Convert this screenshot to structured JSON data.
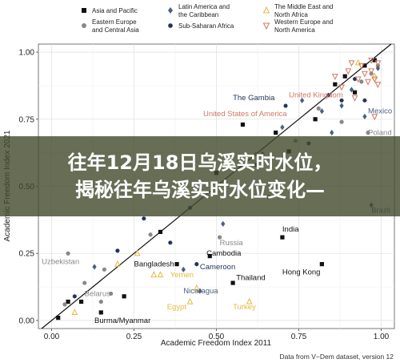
{
  "colors": {
    "asia_pacific": "#111111",
    "eastern_europe": "#888888",
    "latin_america": "#4a6080",
    "sub_saharan": "#1e3158",
    "mena": "#e8b840",
    "western_europe": "#d07860",
    "overlay_bg": "#42482c"
  },
  "overlay": {
    "line1": "往年12月18日乌溪实时水位，",
    "line2": "揭秘往年乌溪实时水位变化—"
  },
  "source": "Data from V−Dem dataset, version 12",
  "chart_data": {
    "type": "scatter",
    "xlabel": "Academic Freedom Index 2011",
    "ylabel": "Academic Freedom Index 2021",
    "xlim": [
      -0.04,
      1.04
    ],
    "ylim": [
      -0.03,
      1.03
    ],
    "xticks": [
      "0.00",
      "0.25",
      "0.50",
      "0.75",
      "1.00"
    ],
    "yticks": [
      "0.00",
      "0.25",
      "0.50",
      "0.75",
      "1.00"
    ],
    "grid": true,
    "legend_position": "top",
    "reference_line": "y = x",
    "legend": [
      {
        "key": "asia_pacific",
        "label": [
          "Asia and Pacific"
        ],
        "marker": "square"
      },
      {
        "key": "latin_america",
        "label": [
          "Latin America and",
          "the Caribbean"
        ],
        "marker": "diamond"
      },
      {
        "key": "mena",
        "label": [
          "The Middle East and",
          "North Africa"
        ],
        "marker": "triangle"
      },
      {
        "key": "eastern_europe",
        "label": [
          "Eastern Europe",
          "and Central Asia"
        ],
        "marker": "circle"
      },
      {
        "key": "sub_saharan",
        "label": [
          "Sub-Saharan Africa"
        ],
        "marker": "star"
      },
      {
        "key": "western_europe",
        "label": [
          "Western Europe and",
          "North America"
        ],
        "marker": "tri-down"
      }
    ],
    "labeled_points": [
      {
        "label": "The Gambia",
        "region": "sub_saharan",
        "x": 0.88,
        "y": 0.82,
        "lx": 0.55,
        "ly": 0.83
      },
      {
        "label": "United Kingdom",
        "region": "western_europe",
        "x": 0.96,
        "y": 0.89,
        "lx": 0.72,
        "ly": 0.84
      },
      {
        "label": "United States of America",
        "region": "western_europe",
        "x": 0.92,
        "y": 0.83,
        "lx": 0.46,
        "ly": 0.77
      },
      {
        "label": "Mexico",
        "region": "latin_america",
        "x": 0.95,
        "y": 0.76,
        "lx": 0.96,
        "ly": 0.78
      },
      {
        "label": "Poland",
        "region": "eastern_europe",
        "x": 0.96,
        "y": 0.7,
        "lx": 0.96,
        "ly": 0.7
      },
      {
        "label": "Brazil",
        "region": "latin_america",
        "x": 0.97,
        "y": 0.43,
        "lx": 0.97,
        "ly": 0.41
      },
      {
        "label": "India",
        "region": "asia_pacific",
        "x": 0.7,
        "y": 0.31,
        "lx": 0.7,
        "ly": 0.34
      },
      {
        "label": "Russia",
        "region": "eastern_europe",
        "x": 0.51,
        "y": 0.31,
        "lx": 0.51,
        "ly": 0.29
      },
      {
        "label": "Cambodia",
        "region": "asia_pacific",
        "x": 0.48,
        "y": 0.24,
        "lx": 0.47,
        "ly": 0.25
      },
      {
        "label": "Uzbekistan",
        "region": "eastern_europe",
        "x": 0.05,
        "y": 0.25,
        "lx": -0.03,
        "ly": 0.22
      },
      {
        "label": "Bangladesh",
        "region": "asia_pacific",
        "x": 0.38,
        "y": 0.21,
        "lx": 0.25,
        "ly": 0.21
      },
      {
        "label": "Cameroon",
        "region": "sub_saharan",
        "x": 0.44,
        "y": 0.21,
        "lx": 0.45,
        "ly": 0.2
      },
      {
        "label": "Hong Kong",
        "region": "asia_pacific",
        "x": 0.82,
        "y": 0.21,
        "lx": 0.7,
        "ly": 0.18
      },
      {
        "label": "Yemen",
        "region": "mena",
        "x": 0.33,
        "y": 0.17,
        "lx": 0.36,
        "ly": 0.17
      },
      {
        "label": "Thailand",
        "region": "asia_pacific",
        "x": 0.55,
        "y": 0.14,
        "lx": 0.56,
        "ly": 0.16
      },
      {
        "label": "Belarus",
        "region": "eastern_europe",
        "x": 0.15,
        "y": 0.07,
        "lx": 0.1,
        "ly": 0.1
      },
      {
        "label": "Nicaragua",
        "region": "latin_america",
        "x": 0.45,
        "y": 0.11,
        "lx": 0.4,
        "ly": 0.11
      },
      {
        "label": "Egypt",
        "region": "mena",
        "x": 0.42,
        "y": 0.07,
        "lx": 0.35,
        "ly": 0.05
      },
      {
        "label": "Turkey",
        "region": "mena",
        "x": 0.6,
        "y": 0.07,
        "lx": 0.55,
        "ly": 0.05
      },
      {
        "label": "Burma/Myanmar",
        "region": "asia_pacific",
        "x": 0.15,
        "y": 0.03,
        "lx": 0.13,
        "ly": 0.0
      }
    ],
    "points": [
      {
        "region": "asia_pacific",
        "x": 0.02,
        "y": 0.01
      },
      {
        "region": "asia_pacific",
        "x": 0.05,
        "y": 0.07
      },
      {
        "region": "asia_pacific",
        "x": 0.09,
        "y": 0.07
      },
      {
        "region": "asia_pacific",
        "x": 0.15,
        "y": 0.03
      },
      {
        "region": "asia_pacific",
        "x": 0.22,
        "y": 0.09
      },
      {
        "region": "asia_pacific",
        "x": 0.33,
        "y": 0.33
      },
      {
        "region": "asia_pacific",
        "x": 0.38,
        "y": 0.21
      },
      {
        "region": "asia_pacific",
        "x": 0.48,
        "y": 0.24
      },
      {
        "region": "asia_pacific",
        "x": 0.55,
        "y": 0.14
      },
      {
        "region": "asia_pacific",
        "x": 0.7,
        "y": 0.31
      },
      {
        "region": "asia_pacific",
        "x": 0.82,
        "y": 0.21
      },
      {
        "region": "asia_pacific",
        "x": 0.58,
        "y": 0.73
      },
      {
        "region": "asia_pacific",
        "x": 0.68,
        "y": 0.7
      },
      {
        "region": "asia_pacific",
        "x": 0.72,
        "y": 0.63
      },
      {
        "region": "asia_pacific",
        "x": 0.8,
        "y": 0.75
      },
      {
        "region": "asia_pacific",
        "x": 0.86,
        "y": 0.88
      },
      {
        "region": "asia_pacific",
        "x": 0.89,
        "y": 0.91
      },
      {
        "region": "asia_pacific",
        "x": 0.92,
        "y": 0.85
      },
      {
        "region": "asia_pacific",
        "x": 0.95,
        "y": 0.95
      },
      {
        "region": "asia_pacific",
        "x": 0.98,
        "y": 0.97
      },
      {
        "region": "asia_pacific",
        "x": 0.5,
        "y": 0.55
      },
      {
        "region": "eastern_europe",
        "x": 0.05,
        "y": 0.25
      },
      {
        "region": "eastern_europe",
        "x": 0.04,
        "y": 0.06
      },
      {
        "region": "eastern_europe",
        "x": 0.15,
        "y": 0.07
      },
      {
        "region": "eastern_europe",
        "x": 0.18,
        "y": 0.1
      },
      {
        "region": "eastern_europe",
        "x": 0.16,
        "y": 0.19
      },
      {
        "region": "eastern_europe",
        "x": 0.1,
        "y": 0.14
      },
      {
        "region": "eastern_europe",
        "x": 0.3,
        "y": 0.32
      },
      {
        "region": "eastern_europe",
        "x": 0.51,
        "y": 0.31
      },
      {
        "region": "eastern_europe",
        "x": 0.62,
        "y": 0.62
      },
      {
        "region": "eastern_europe",
        "x": 0.74,
        "y": 0.67
      },
      {
        "region": "eastern_europe",
        "x": 0.81,
        "y": 0.79
      },
      {
        "region": "eastern_europe",
        "x": 0.88,
        "y": 0.74
      },
      {
        "region": "eastern_europe",
        "x": 0.94,
        "y": 0.89
      },
      {
        "region": "eastern_europe",
        "x": 0.96,
        "y": 0.7
      },
      {
        "region": "eastern_europe",
        "x": 0.97,
        "y": 0.92
      },
      {
        "region": "eastern_europe",
        "x": 0.99,
        "y": 0.95
      },
      {
        "region": "latin_america",
        "x": 0.13,
        "y": 0.2
      },
      {
        "region": "latin_america",
        "x": 0.45,
        "y": 0.11
      },
      {
        "region": "latin_america",
        "x": 0.4,
        "y": 0.19
      },
      {
        "region": "latin_america",
        "x": 0.52,
        "y": 0.36
      },
      {
        "region": "latin_america",
        "x": 0.64,
        "y": 0.62
      },
      {
        "region": "latin_america",
        "x": 0.7,
        "y": 0.72
      },
      {
        "region": "latin_america",
        "x": 0.76,
        "y": 0.82
      },
      {
        "region": "latin_america",
        "x": 0.82,
        "y": 0.78
      },
      {
        "region": "latin_america",
        "x": 0.85,
        "y": 0.7
      },
      {
        "region": "latin_america",
        "x": 0.88,
        "y": 0.8
      },
      {
        "region": "latin_america",
        "x": 0.91,
        "y": 0.86
      },
      {
        "region": "latin_america",
        "x": 0.95,
        "y": 0.76
      },
      {
        "region": "latin_america",
        "x": 0.97,
        "y": 0.43
      },
      {
        "region": "latin_america",
        "x": 0.99,
        "y": 0.94
      },
      {
        "region": "sub_saharan",
        "x": 0.07,
        "y": 0.09
      },
      {
        "region": "sub_saharan",
        "x": 0.2,
        "y": 0.26
      },
      {
        "region": "sub_saharan",
        "x": 0.28,
        "y": 0.38
      },
      {
        "region": "sub_saharan",
        "x": 0.36,
        "y": 0.29
      },
      {
        "region": "sub_saharan",
        "x": 0.44,
        "y": 0.21
      },
      {
        "region": "sub_saharan",
        "x": 0.42,
        "y": 0.42
      },
      {
        "region": "sub_saharan",
        "x": 0.56,
        "y": 0.5
      },
      {
        "region": "sub_saharan",
        "x": 0.62,
        "y": 0.58
      },
      {
        "region": "sub_saharan",
        "x": 0.66,
        "y": 0.46
      },
      {
        "region": "sub_saharan",
        "x": 0.71,
        "y": 0.8
      },
      {
        "region": "sub_saharan",
        "x": 0.78,
        "y": 0.66
      },
      {
        "region": "sub_saharan",
        "x": 0.84,
        "y": 0.84
      },
      {
        "region": "sub_saharan",
        "x": 0.88,
        "y": 0.82
      },
      {
        "region": "sub_saharan",
        "x": 0.92,
        "y": 0.9
      },
      {
        "region": "sub_saharan",
        "x": 0.95,
        "y": 0.82
      },
      {
        "region": "mena",
        "x": 0.07,
        "y": 0.03
      },
      {
        "region": "mena",
        "x": 0.2,
        "y": 0.21
      },
      {
        "region": "mena",
        "x": 0.26,
        "y": 0.25
      },
      {
        "region": "mena",
        "x": 0.31,
        "y": 0.17
      },
      {
        "region": "mena",
        "x": 0.33,
        "y": 0.17
      },
      {
        "region": "mena",
        "x": 0.42,
        "y": 0.07
      },
      {
        "region": "mena",
        "x": 0.44,
        "y": 0.12
      },
      {
        "region": "mena",
        "x": 0.6,
        "y": 0.07
      },
      {
        "region": "mena",
        "x": 0.93,
        "y": 0.96
      },
      {
        "region": "mena",
        "x": 0.98,
        "y": 0.91
      },
      {
        "region": "western_europe",
        "x": 0.88,
        "y": 0.87
      },
      {
        "region": "western_europe",
        "x": 0.9,
        "y": 0.93
      },
      {
        "region": "western_europe",
        "x": 0.92,
        "y": 0.83
      },
      {
        "region": "western_europe",
        "x": 0.93,
        "y": 0.9
      },
      {
        "region": "western_europe",
        "x": 0.94,
        "y": 0.95
      },
      {
        "region": "western_europe",
        "x": 0.95,
        "y": 0.92
      },
      {
        "region": "western_europe",
        "x": 0.96,
        "y": 0.89
      },
      {
        "region": "western_europe",
        "x": 0.97,
        "y": 0.97
      },
      {
        "region": "western_europe",
        "x": 0.97,
        "y": 0.93
      },
      {
        "region": "western_europe",
        "x": 0.98,
        "y": 0.9
      },
      {
        "region": "western_europe",
        "x": 0.99,
        "y": 0.96
      },
      {
        "region": "western_europe",
        "x": 0.99,
        "y": 0.88
      },
      {
        "region": "western_europe",
        "x": 0.91,
        "y": 0.96
      },
      {
        "region": "western_europe",
        "x": 0.86,
        "y": 0.91
      },
      {
        "region": "western_europe",
        "x": 0.98,
        "y": 0.76
      }
    ]
  }
}
